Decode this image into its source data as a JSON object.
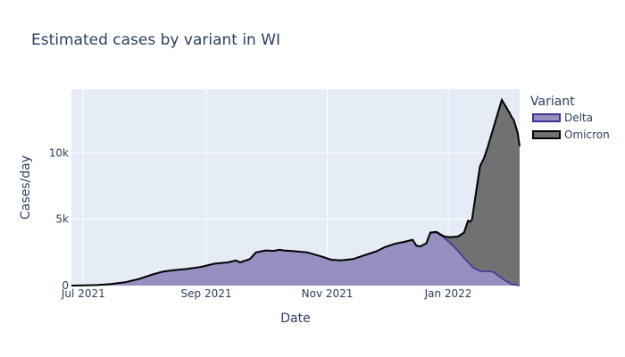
{
  "chart_data": {
    "type": "area",
    "title": "Estimated cases by variant in WI",
    "xlabel": "Date",
    "ylabel": "Cases/day",
    "x_ticks": [
      {
        "date": "2021-07-01",
        "label": "Jul 2021"
      },
      {
        "date": "2021-09-01",
        "label": "Sep 2021"
      },
      {
        "date": "2021-11-01",
        "label": "Nov 2021"
      },
      {
        "date": "2022-01-01",
        "label": "Jan 2022"
      }
    ],
    "y_ticks": [
      {
        "value": 0,
        "label": "0"
      },
      {
        "value": 5000,
        "label": "5k"
      },
      {
        "value": 10000,
        "label": "10k"
      }
    ],
    "xlim": [
      "2021-06-25",
      "2022-02-06"
    ],
    "ylim": [
      0,
      14800
    ],
    "stacked": true,
    "grid": true,
    "legend": {
      "title": "Variant",
      "position": "right"
    },
    "colors": {
      "plot_bg": "#e5ecf6",
      "grid": "#ffffff",
      "text": "#2a3f5f"
    },
    "series": [
      {
        "name": "Delta",
        "fill": "#9590c0",
        "line": "#3a3597",
        "points": [
          [
            "2021-06-25",
            0
          ],
          [
            "2021-07-01",
            20
          ],
          [
            "2021-07-08",
            40
          ],
          [
            "2021-07-15",
            120
          ],
          [
            "2021-07-22",
            250
          ],
          [
            "2021-07-29",
            500
          ],
          [
            "2021-08-05",
            850
          ],
          [
            "2021-08-10",
            1050
          ],
          [
            "2021-08-15",
            1150
          ],
          [
            "2021-08-22",
            1250
          ],
          [
            "2021-08-29",
            1400
          ],
          [
            "2021-09-05",
            1650
          ],
          [
            "2021-09-12",
            1750
          ],
          [
            "2021-09-16",
            1900
          ],
          [
            "2021-09-18",
            1750
          ],
          [
            "2021-09-23",
            2000
          ],
          [
            "2021-09-26",
            2500
          ],
          [
            "2021-10-01",
            2650
          ],
          [
            "2021-10-05",
            2620
          ],
          [
            "2021-10-08",
            2700
          ],
          [
            "2021-10-10",
            2650
          ],
          [
            "2021-10-15",
            2600
          ],
          [
            "2021-10-22",
            2500
          ],
          [
            "2021-10-29",
            2200
          ],
          [
            "2021-11-03",
            1950
          ],
          [
            "2021-11-08",
            1900
          ],
          [
            "2021-11-14",
            2000
          ],
          [
            "2021-11-20",
            2300
          ],
          [
            "2021-11-26",
            2600
          ],
          [
            "2021-11-30",
            2900
          ],
          [
            "2021-12-05",
            3150
          ],
          [
            "2021-12-10",
            3300
          ],
          [
            "2021-12-14",
            3450
          ],
          [
            "2021-12-16",
            3000
          ],
          [
            "2021-12-18",
            2950
          ],
          [
            "2021-12-21",
            3200
          ],
          [
            "2021-12-23",
            3950
          ],
          [
            "2021-12-26",
            4000
          ],
          [
            "2021-12-30",
            3600
          ],
          [
            "2022-01-02",
            3200
          ],
          [
            "2022-01-06",
            2600
          ],
          [
            "2022-01-10",
            1900
          ],
          [
            "2022-01-14",
            1300
          ],
          [
            "2022-01-18",
            1050
          ],
          [
            "2022-01-21",
            1100
          ],
          [
            "2022-01-24",
            1000
          ],
          [
            "2022-01-27",
            650
          ],
          [
            "2022-01-30",
            350
          ],
          [
            "2022-02-02",
            100
          ],
          [
            "2022-02-06",
            0
          ]
        ]
      },
      {
        "name": "Omicron",
        "fill": "#6f7173",
        "line": "#000000",
        "total_points": [
          [
            "2021-06-25",
            0
          ],
          [
            "2021-07-01",
            20
          ],
          [
            "2021-07-08",
            40
          ],
          [
            "2021-07-15",
            120
          ],
          [
            "2021-07-22",
            250
          ],
          [
            "2021-07-29",
            500
          ],
          [
            "2021-08-05",
            850
          ],
          [
            "2021-08-10",
            1050
          ],
          [
            "2021-08-15",
            1150
          ],
          [
            "2021-08-22",
            1250
          ],
          [
            "2021-08-29",
            1400
          ],
          [
            "2021-09-05",
            1650
          ],
          [
            "2021-09-12",
            1750
          ],
          [
            "2021-09-16",
            1900
          ],
          [
            "2021-09-18",
            1750
          ],
          [
            "2021-09-23",
            2000
          ],
          [
            "2021-09-26",
            2500
          ],
          [
            "2021-10-01",
            2650
          ],
          [
            "2021-10-05",
            2620
          ],
          [
            "2021-10-08",
            2700
          ],
          [
            "2021-10-10",
            2650
          ],
          [
            "2021-10-15",
            2600
          ],
          [
            "2021-10-22",
            2500
          ],
          [
            "2021-10-29",
            2200
          ],
          [
            "2021-11-03",
            1950
          ],
          [
            "2021-11-08",
            1900
          ],
          [
            "2021-11-14",
            2000
          ],
          [
            "2021-11-20",
            2300
          ],
          [
            "2021-11-26",
            2600
          ],
          [
            "2021-11-30",
            2900
          ],
          [
            "2021-12-05",
            3150
          ],
          [
            "2021-12-10",
            3300
          ],
          [
            "2021-12-14",
            3450
          ],
          [
            "2021-12-16",
            3000
          ],
          [
            "2021-12-18",
            2950
          ],
          [
            "2021-12-21",
            3200
          ],
          [
            "2021-12-23",
            4000
          ],
          [
            "2021-12-26",
            4050
          ],
          [
            "2021-12-30",
            3700
          ],
          [
            "2022-01-02",
            3650
          ],
          [
            "2022-01-06",
            3700
          ],
          [
            "2022-01-09",
            4000
          ],
          [
            "2022-01-11",
            4900
          ],
          [
            "2022-01-12",
            4800
          ],
          [
            "2022-01-13",
            5000
          ],
          [
            "2022-01-15",
            7000
          ],
          [
            "2022-01-17",
            9000
          ],
          [
            "2022-01-19",
            9600
          ],
          [
            "2022-01-21",
            10500
          ],
          [
            "2022-01-23",
            11500
          ],
          [
            "2022-01-25",
            12500
          ],
          [
            "2022-01-27",
            13500
          ],
          [
            "2022-01-28",
            14000
          ],
          [
            "2022-01-30",
            13500
          ],
          [
            "2022-02-01",
            13000
          ],
          [
            "2022-02-02",
            12700
          ],
          [
            "2022-02-03",
            12500
          ],
          [
            "2022-02-04",
            12000
          ],
          [
            "2022-02-05",
            11500
          ],
          [
            "2022-02-06",
            10500
          ]
        ]
      }
    ]
  }
}
